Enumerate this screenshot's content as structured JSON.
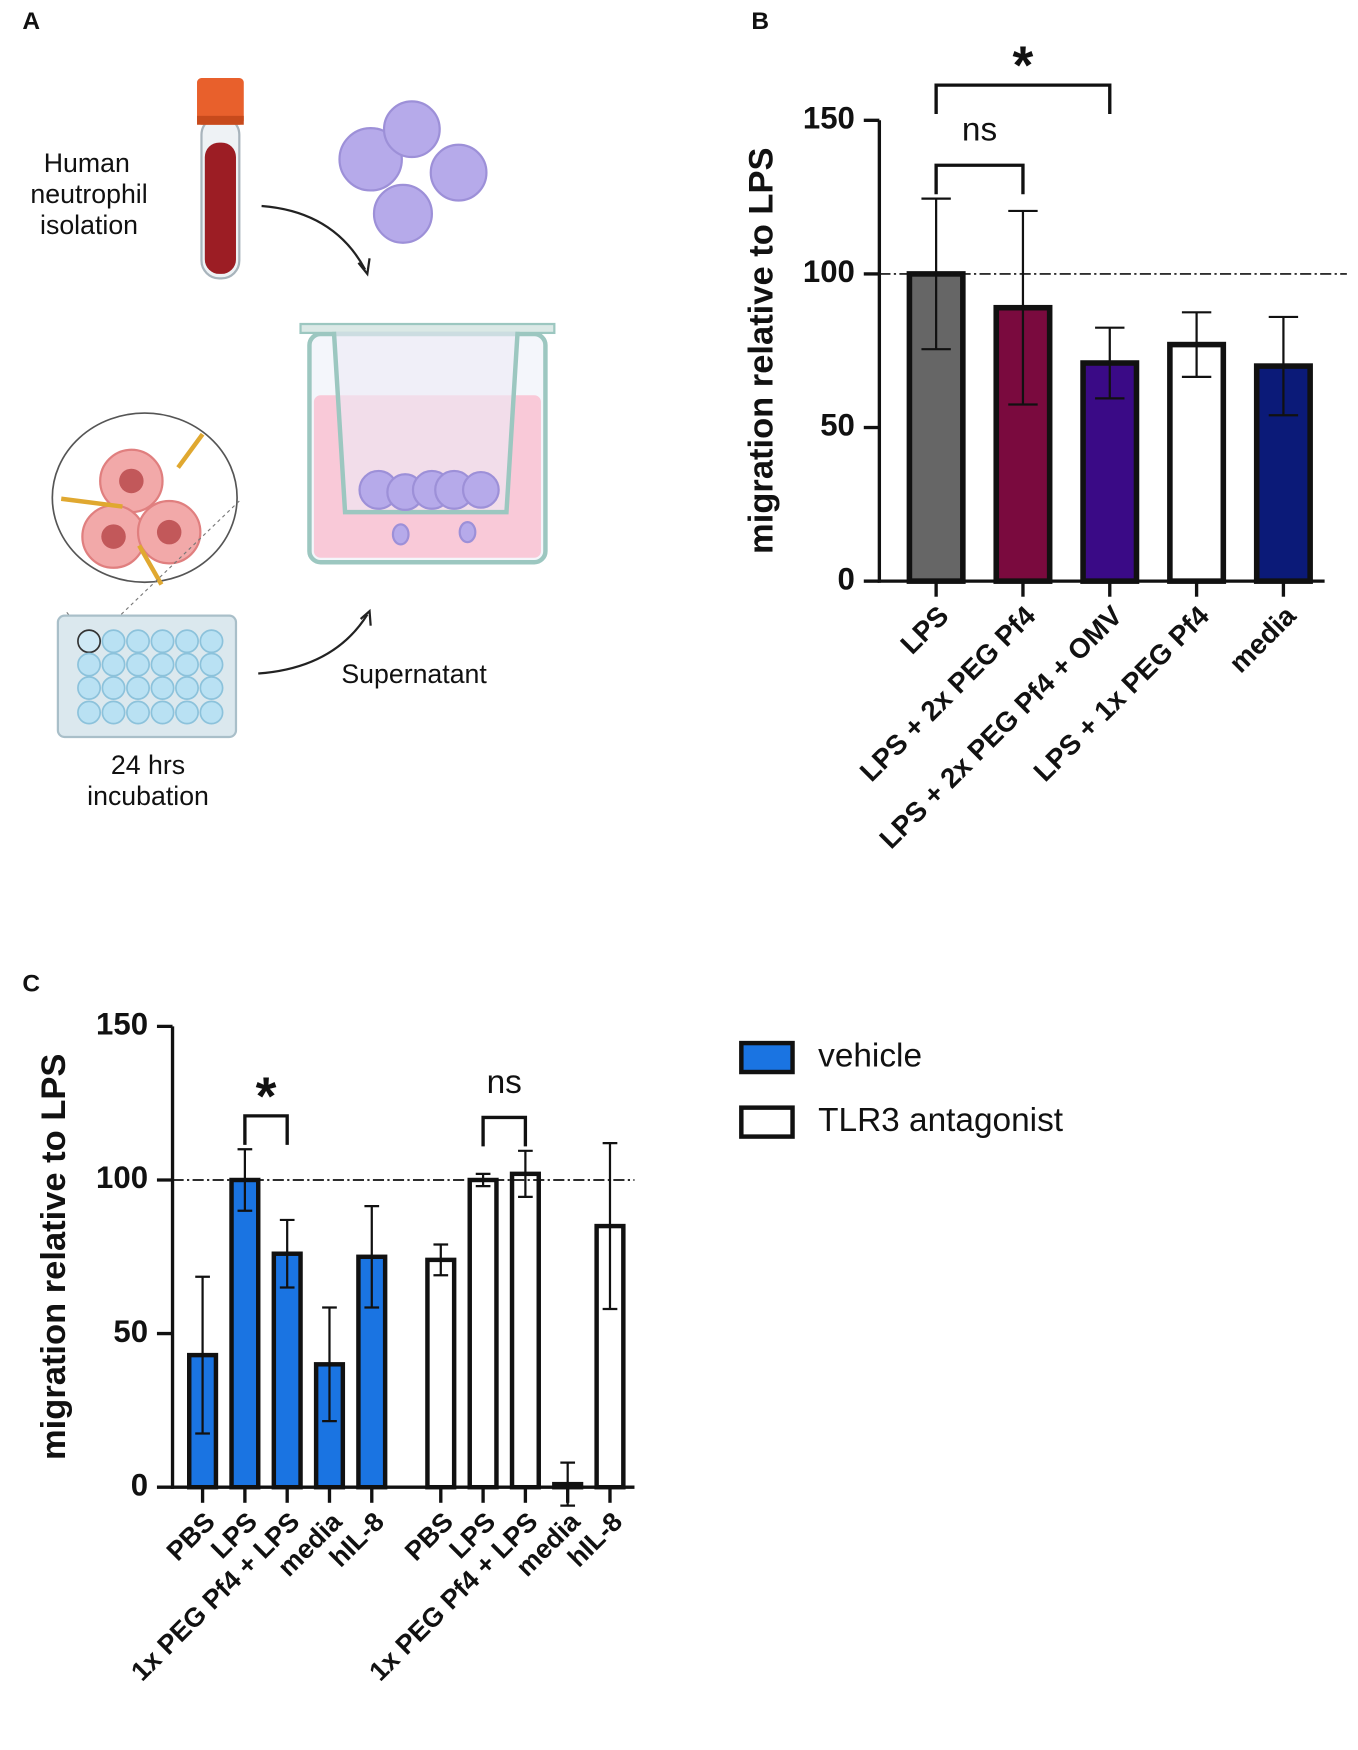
{
  "diagram": {
    "panel": "A",
    "isolation_label": [
      "Human",
      "neutrophil",
      "isolation"
    ],
    "supernatant_label": "Supernatant",
    "incubation_label": [
      "24 hrs",
      "incubation"
    ]
  },
  "chart_data": [
    {
      "type": "bar",
      "panel": "B",
      "y_label": "migration relative to LPS",
      "categories": [
        "LPS",
        "LPS + 2x PEG Pf4",
        "LPS + 2x PEG Pf4 + OMV",
        "LPS + 1x PEG Pf4",
        "media"
      ],
      "values": [
        100,
        89,
        71,
        77,
        70
      ],
      "errors": [
        24.5,
        31.5,
        11.5,
        10.5,
        16
      ],
      "colors": [
        "#666666",
        "#7a0a3e",
        "#3a0a86",
        "#ffffff",
        "#0b1a78"
      ],
      "ylim": [
        0,
        150
      ],
      "yticks": [
        0,
        50,
        100,
        150
      ],
      "reference_line": 100,
      "brackets": [
        {
          "from": 0,
          "to": 1,
          "label": "ns"
        },
        {
          "from": 0,
          "to": 2,
          "label": "*"
        }
      ]
    },
    {
      "type": "bar",
      "panel": "C",
      "y_label": "migration relative to LPS",
      "categories": [
        "PBS",
        "LPS",
        "1x PEG Pf4 + LPS",
        "media",
        "hIL-8",
        "PBS",
        "LPS",
        "1x PEG Pf4 + LPS",
        "media",
        "hIL-8"
      ],
      "series": [
        {
          "name": "vehicle",
          "color": "#1a74e2",
          "values": [
            43,
            100,
            76,
            40,
            75,
            null,
            null,
            null,
            null,
            null
          ],
          "errors": [
            25.5,
            10,
            11,
            18.5,
            16.5,
            null,
            null,
            null,
            null,
            null
          ]
        },
        {
          "name": "TLR3 antagonist",
          "color": "#ffffff",
          "values": [
            null,
            null,
            null,
            null,
            null,
            74,
            100,
            102,
            1,
            85
          ],
          "errors": [
            null,
            null,
            null,
            null,
            null,
            5,
            2,
            7.5,
            7,
            27
          ]
        }
      ],
      "ylim": [
        0,
        150
      ],
      "yticks": [
        0,
        50,
        100,
        150
      ],
      "reference_line": 100,
      "brackets": [
        {
          "from": 1,
          "to": 2,
          "label": "*"
        },
        {
          "from": 6,
          "to": 7,
          "label": "ns"
        }
      ]
    }
  ]
}
